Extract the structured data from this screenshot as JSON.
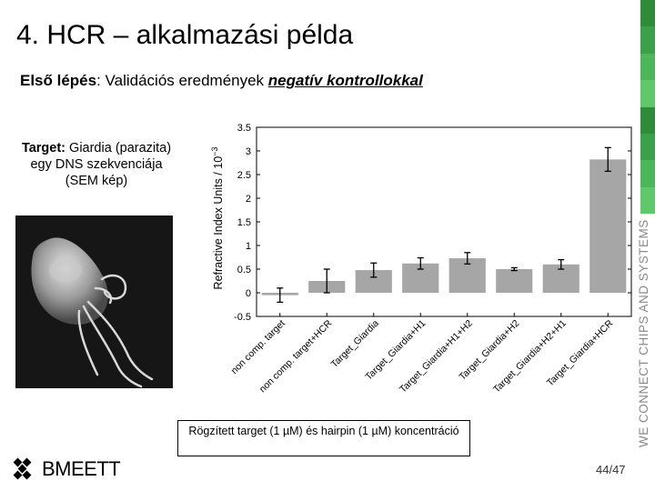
{
  "slide": {
    "title": "4. HCR – alkalmazási példa",
    "subtitle_bold": "Első lépés",
    "subtitle_text": ": Validációs eredmények ",
    "subtitle_underlined": "negatív kontrollokkal",
    "target_bold": "Target:",
    "target_text": " Giardia (parazita) egy DNS szekvenciája (SEM kép)",
    "note": "Rögzített target (1 µM) és hairpin (1 µM) koncentráció",
    "page_number": "44/47",
    "tagline": "WE CONNECT CHIPS AND SYSTEMS",
    "logo_text": "BMEETT",
    "stripe_colors": [
      "#2e8b3a",
      "#3aa04a",
      "#4cb65a",
      "#5fc86a",
      "#2e8b3a",
      "#3aa04a",
      "#4cb65a",
      "#5fc86a"
    ]
  },
  "chart_data": {
    "type": "bar",
    "ylabel": "Refractive Index Units / 10",
    "ylabel_exponent": "−3",
    "ylim": [
      -0.5,
      3.5
    ],
    "yticks": [
      -0.5,
      0,
      0.5,
      1,
      1.5,
      2,
      2.5,
      3,
      3.5
    ],
    "ytick_labels": [
      "-0.5",
      "0",
      "0.5",
      "1",
      "1.5",
      "2",
      "2.5",
      "3",
      "3.5"
    ],
    "categories": [
      "non comp. target",
      "non comp. target+HCR",
      "Target_Giardia",
      "Target_Giardia+H1",
      "Target_Giardia+H1+H2",
      "Target_Giardia+H2",
      "Target_Giardia+H2+H1",
      "Target_Giardia+HCR"
    ],
    "values": [
      -0.05,
      0.25,
      0.48,
      0.62,
      0.73,
      0.5,
      0.6,
      2.82
    ],
    "errors": [
      0.15,
      0.25,
      0.15,
      0.12,
      0.12,
      0.03,
      0.1,
      0.25
    ],
    "bar_color": "#a6a6a6",
    "grid": false
  }
}
